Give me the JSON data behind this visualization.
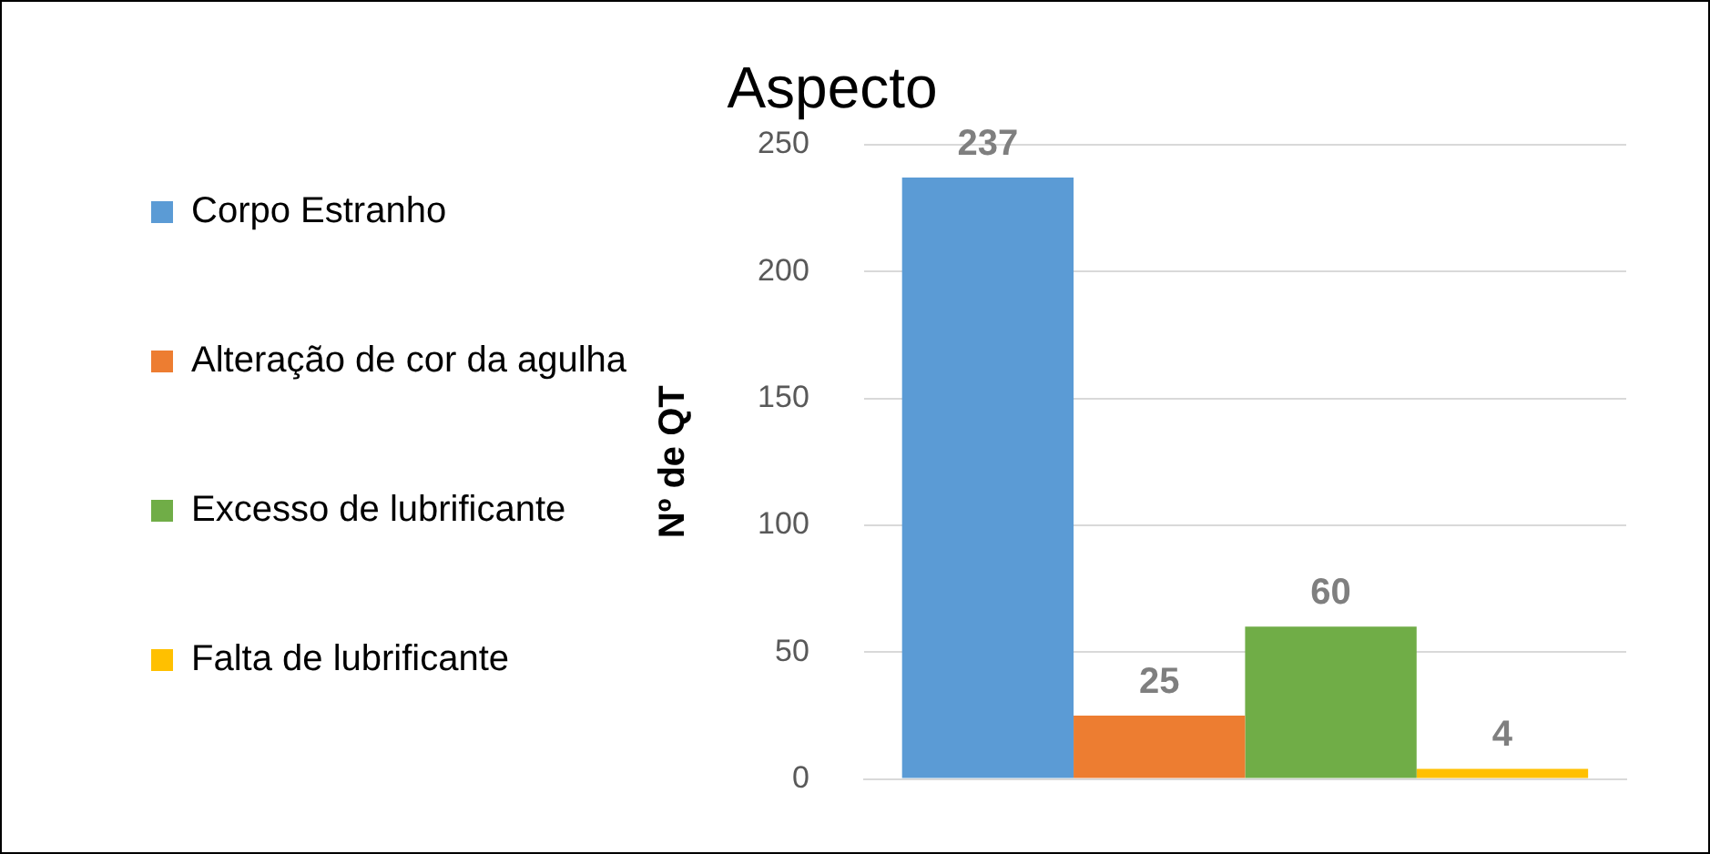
{
  "chart_data": {
    "type": "bar",
    "title": "Aspecto",
    "ylabel": "Nº de QT",
    "categories": [
      null
    ],
    "series": [
      {
        "name": "Corpo Estranho",
        "color": "#5b9bd5",
        "values": [
          237
        ]
      },
      {
        "name": "Alteração de cor da agulha",
        "color": "#ed7d31",
        "values": [
          25
        ]
      },
      {
        "name": "Excesso de lubrificante",
        "color": "#70ad47",
        "values": [
          60
        ]
      },
      {
        "name": "Falta de lubrificante",
        "color": "#ffc000",
        "values": [
          4
        ]
      }
    ],
    "ylim": [
      0,
      250
    ],
    "yticks": [
      0,
      50,
      100,
      150,
      200,
      250
    ],
    "grid": "y",
    "legend": "left",
    "data_labels": true
  }
}
